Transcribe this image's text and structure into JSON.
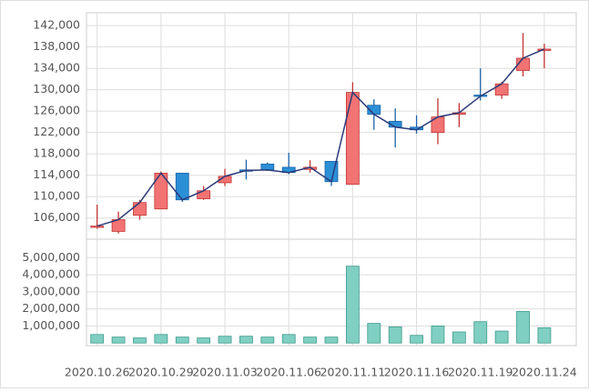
{
  "chart_data": [
    {
      "type": "candlestick",
      "categories": [
        "2020.10.26",
        null,
        null,
        "2020.10.29",
        null,
        null,
        "2020.11.03",
        null,
        null,
        "2020.11.06",
        null,
        null,
        "2020.11.11",
        null,
        null,
        "2020.11.16",
        null,
        null,
        "2020.11.19",
        null,
        null,
        "2020.11.24"
      ],
      "open": [
        104500,
        103500,
        106500,
        107700,
        114400,
        109600,
        112600,
        115000,
        116100,
        115500,
        115100,
        116600,
        112300,
        127100,
        124100,
        123000,
        122000,
        125400,
        129000,
        129000,
        133600,
        137400
      ],
      "high": [
        108500,
        107200,
        109400,
        114700,
        114400,
        112000,
        115200,
        116900,
        116400,
        118200,
        116800,
        116600,
        131400,
        128200,
        126500,
        125200,
        128400,
        127500,
        134000,
        131500,
        140600,
        138600
      ],
      "low": [
        104000,
        103100,
        105700,
        107700,
        109000,
        109400,
        112000,
        113200,
        114800,
        114200,
        114500,
        112000,
        112300,
        122500,
        119200,
        121800,
        119800,
        123000,
        128000,
        128300,
        132500,
        134000
      ],
      "close": [
        104500,
        105700,
        108900,
        114400,
        109400,
        111100,
        113800,
        114900,
        115000,
        114500,
        115500,
        112800,
        129500,
        125400,
        123000,
        122500,
        124900,
        125700,
        128800,
        131100,
        135900,
        137600
      ],
      "up_color": "#f27373",
      "down_color": "#2b8fd6",
      "line_color": "#2b3a78",
      "ylim": [
        101700,
        144400
      ],
      "yticks": [
        {
          "value": 106000,
          "label": "106,000"
        },
        {
          "value": 110000,
          "label": "110,000"
        },
        {
          "value": 114000,
          "label": "114,000"
        },
        {
          "value": 118000,
          "label": "118,000"
        },
        {
          "value": 122000,
          "label": "122,000"
        },
        {
          "value": 126000,
          "label": "126,000"
        },
        {
          "value": 130000,
          "label": "130,000"
        },
        {
          "value": 134000,
          "label": "134,000"
        },
        {
          "value": 138000,
          "label": "138,000"
        },
        {
          "value": 142000,
          "label": "142,000"
        }
      ],
      "grid": true
    },
    {
      "type": "bar",
      "values": [
        500000,
        350000,
        300000,
        500000,
        350000,
        300000,
        400000,
        400000,
        350000,
        500000,
        350000,
        350000,
        4500000,
        1150000,
        950000,
        450000,
        1000000,
        650000,
        1250000,
        700000,
        1850000,
        900000
      ],
      "color": "#80cfc3",
      "ylim": [
        -150000,
        6080000
      ],
      "yticks": [
        {
          "value": 1000000,
          "label": "1,000,000"
        },
        {
          "value": 2000000,
          "label": "2,000,000"
        },
        {
          "value": 3000000,
          "label": "3,000,000"
        },
        {
          "value": 4000000,
          "label": "4,000,000"
        },
        {
          "value": 5000000,
          "label": "5,000,000"
        }
      ],
      "grid": true
    }
  ]
}
